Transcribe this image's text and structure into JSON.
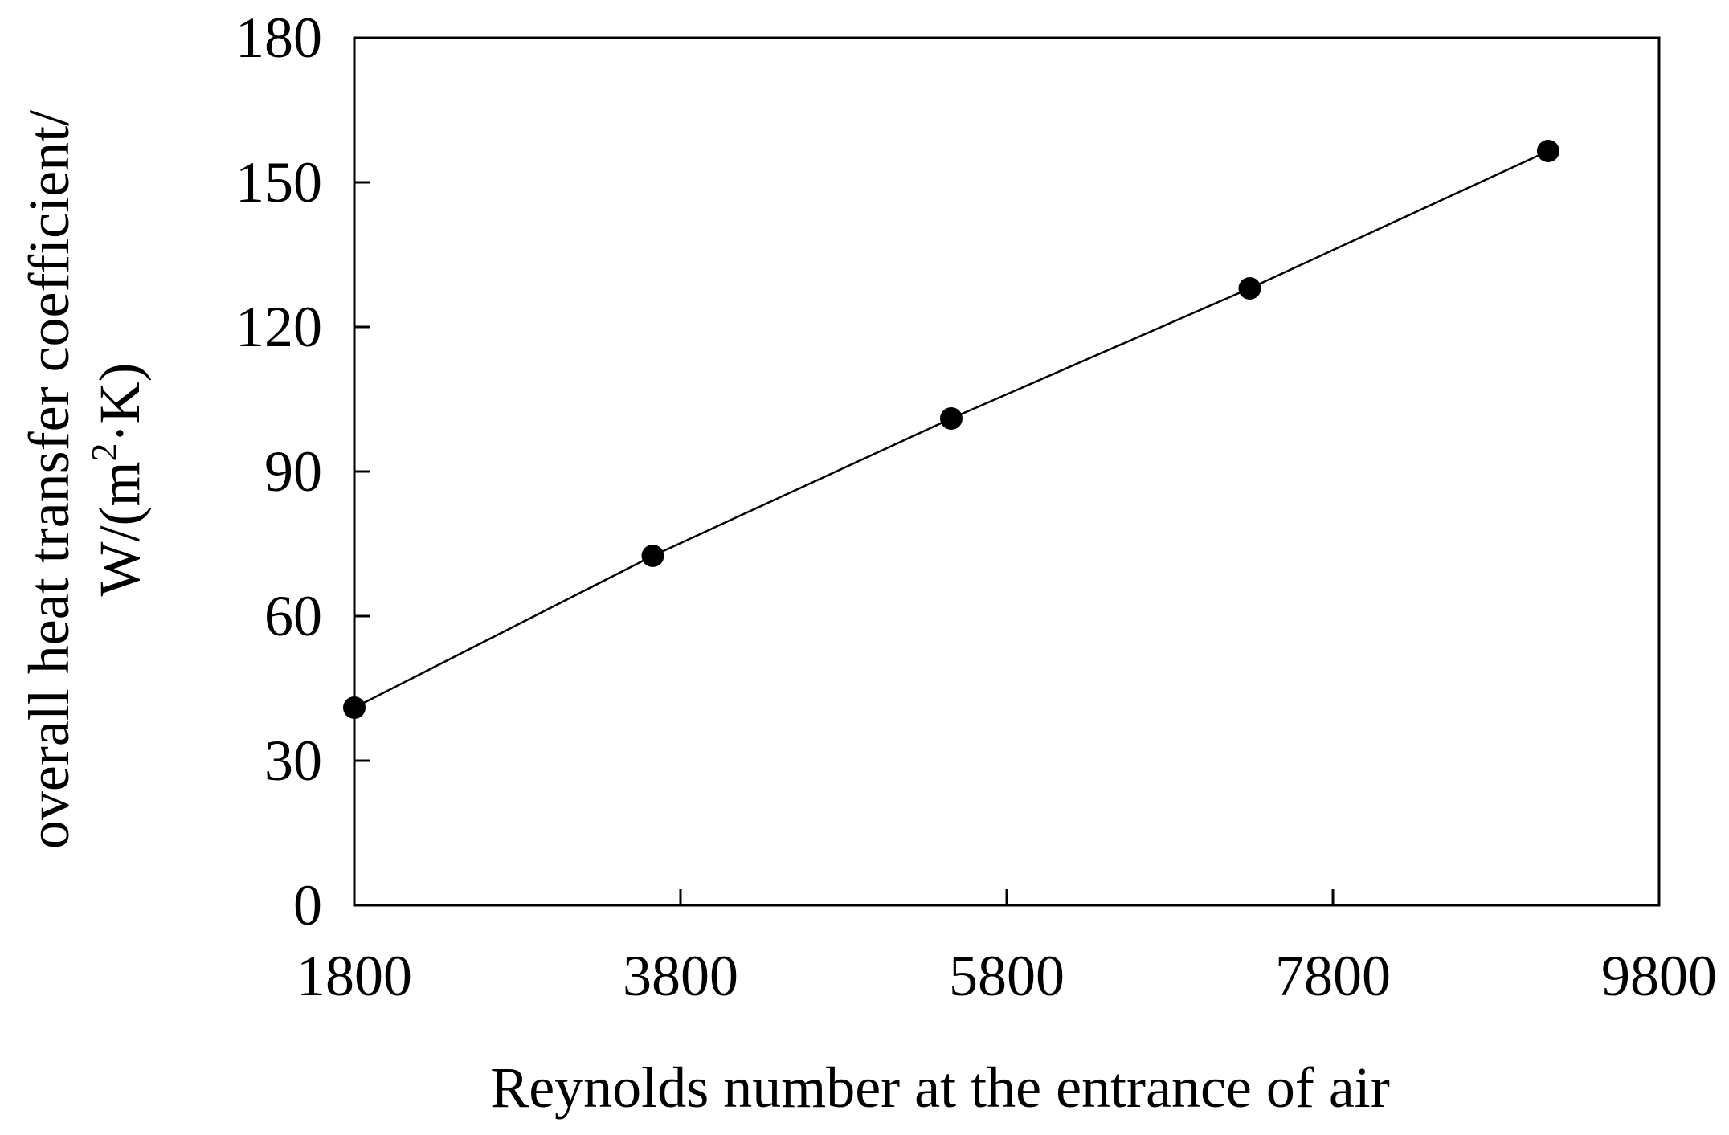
{
  "chart_data": {
    "type": "line",
    "title": "",
    "xlabel": "Reynolds number at the entrance of air",
    "ylabel": {
      "line1": "overall heat transfer coefficient/",
      "line2_prefix": "W/(m",
      "line2_sup": "2",
      "line2_suffix": "·K)"
    },
    "xlim": [
      1800,
      9800
    ],
    "ylim": [
      0,
      180
    ],
    "xticks": [
      1800,
      3800,
      5800,
      7800,
      9800
    ],
    "yticks": [
      0,
      30,
      60,
      90,
      120,
      150,
      180
    ],
    "grid": false,
    "legend": "none",
    "series": [
      {
        "x": [
          1800,
          3630,
          5460,
          7290,
          9120
        ],
        "y": [
          41,
          72.5,
          101,
          128,
          156.5
        ]
      }
    ],
    "colors": {
      "line": "#000000",
      "marker": "#000000",
      "axis": "#000000"
    }
  }
}
